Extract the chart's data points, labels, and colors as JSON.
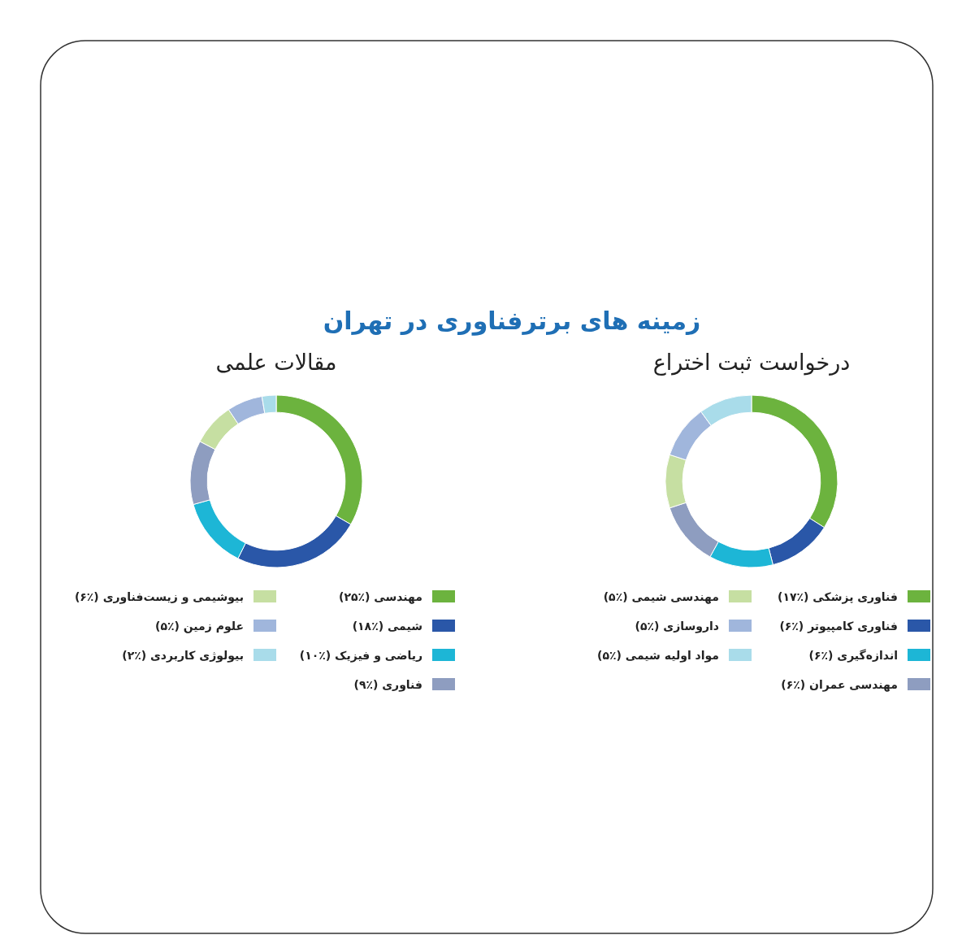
{
  "chart_data": [
    {
      "type": "donut",
      "title": "زمینه های برترفناوری در تهران",
      "subtitle": "درخواست ثبت اختراع",
      "legend": "bottom",
      "categories": [
        "فناوری پزشکی",
        "فناوری کامپیوتر",
        "اندازه‌گیری",
        "مهندسی عمران",
        "مهندسی شیمی",
        "داروسازی",
        "مواد اولیه شیمی"
      ],
      "values": [
        17,
        6,
        6,
        6,
        5,
        5,
        5
      ],
      "value_labels": [
        "(٪۱۷)",
        "(٪۶)",
        "(٪۶)",
        "(٪۶)",
        "(٪۵)",
        "(٪۵)",
        "(٪۵)"
      ],
      "colors": [
        "#6cb33e",
        "#2a57a8",
        "#1db6d6",
        "#8e9dc0",
        "#c6dfa2",
        "#a0b6dc",
        "#a9dcea"
      ]
    },
    {
      "type": "donut",
      "subtitle": "مقالات علمی",
      "legend": "bottom",
      "categories": [
        "مهندسی",
        "شیمی",
        "ریاضی و فیزیک",
        "فناوری",
        "بیوشیمی و زیست‌فناوری",
        "علوم زمین",
        "بیولوژی کاربردی"
      ],
      "values": [
        25,
        18,
        10,
        9,
        6,
        5,
        2
      ],
      "value_labels": [
        "(٪۲۵)",
        "(٪۱۸)",
        "(٪۱۰)",
        "(٪۹)",
        "(٪۶)",
        "(٪۵)",
        "(٪۲)"
      ],
      "colors": [
        "#6cb33e",
        "#2a57a8",
        "#1db6d6",
        "#8e9dc0",
        "#c6dfa2",
        "#a0b6dc",
        "#a9dcea"
      ]
    }
  ]
}
